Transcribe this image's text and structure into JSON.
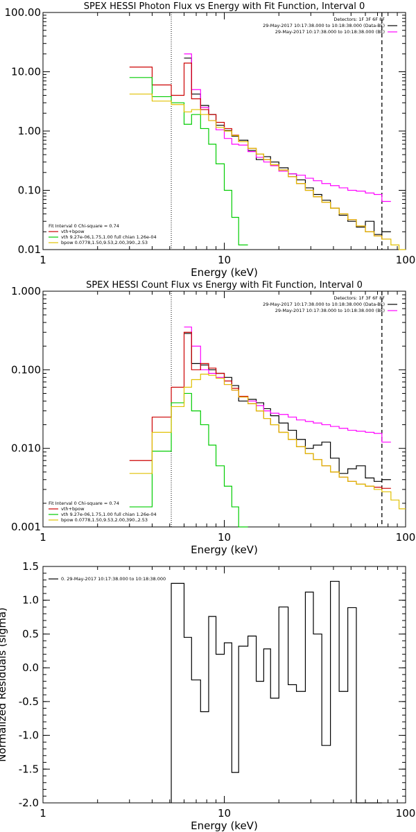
{
  "colors": {
    "data": "#000000",
    "bk": "#ff00ff",
    "total": "#cc0000",
    "vth": "#00cc00",
    "bpow": "#e0c000"
  },
  "chart_data": [
    {
      "type": "line",
      "scale": "log-log",
      "title": "SPEX HESSI Photon Flux vs Energy with Fit Function, Interval 0",
      "xlabel": "Energy (keV)",
      "ylabel": "",
      "xlim": [
        1,
        100
      ],
      "ylim": [
        0.01,
        100
      ],
      "xticks": [
        "1",
        "10",
        "100"
      ],
      "yticks": [
        "0.01",
        "0.10",
        "1.00",
        "10.00",
        "100.00"
      ],
      "header": [
        "Detectors: 1F 3F 6F 8F",
        "29-May-2017 10:17:38.000 to 10:18:38.000 (Data-Bk)",
        "29-May-2017 10:17:38.000 to 10:18:38.000 (Bk)"
      ],
      "legend": [
        "Fit Interval 0   Chi-square = 0.74",
        "vth+bpow",
        "vth 9.27e-06,1.75,1.00  full chian 1.26e-04",
        "bpow 0.0778,1.50,9.53,2.00,390.,2.53"
      ],
      "vlines": [
        5.1,
        74
      ],
      "edges": [
        3,
        4,
        5.1,
        6,
        6.6,
        7.4,
        8.2,
        9,
        10,
        11,
        12,
        13.5,
        15,
        16.5,
        18,
        20,
        22.5,
        25,
        28,
        31,
        34.5,
        38.5,
        43,
        48,
        53.5,
        60,
        67,
        74,
        83,
        92,
        100
      ],
      "series": [
        {
          "name": "Data-Bk",
          "key": "data",
          "values": [
            null,
            null,
            null,
            17,
            4.2,
            2.7,
            1.9,
            1.25,
            1.02,
            0.82,
            0.7,
            0.47,
            0.33,
            0.37,
            0.3,
            0.24,
            0.19,
            0.15,
            0.11,
            0.085,
            0.068,
            0.05,
            0.038,
            0.03,
            0.024,
            0.03,
            0.018,
            0.02,
            null,
            null
          ]
        },
        {
          "name": "Bk",
          "key": "bk",
          "values": [
            null,
            null,
            null,
            20,
            5,
            2.5,
            1.5,
            1.05,
            0.75,
            0.6,
            0.58,
            0.45,
            0.36,
            0.3,
            0.26,
            0.21,
            0.19,
            0.18,
            0.16,
            0.145,
            0.13,
            0.12,
            0.11,
            0.1,
            0.097,
            0.09,
            0.085,
            0.065,
            null,
            null
          ]
        },
        {
          "name": "vth+bpow",
          "key": "total",
          "values": [
            12,
            6,
            4,
            14,
            3.5,
            2.3,
            1.9,
            1.4,
            1.1,
            0.85,
            0.66,
            0.51,
            0.41,
            0.33,
            0.27,
            0.22,
            0.17,
            0.13,
            0.1,
            0.078,
            0.063,
            0.05,
            0.04,
            0.032,
            0.025,
            0.02,
            0.017,
            0.015,
            null,
            null
          ]
        },
        {
          "name": "vth",
          "key": "vth",
          "values": [
            8,
            3.8,
            3,
            1.3,
            1.9,
            1.1,
            0.6,
            0.28,
            0.1,
            0.035,
            0.012,
            null,
            null,
            null,
            null,
            null,
            null,
            null,
            null,
            null,
            null,
            null,
            null,
            null,
            null,
            null,
            null,
            null,
            null,
            null
          ]
        },
        {
          "name": "bpow",
          "key": "bpow",
          "values": [
            4.2,
            3.2,
            2.8,
            2.1,
            2.3,
            1.9,
            1.5,
            1.15,
            1,
            0.84,
            0.66,
            0.51,
            0.41,
            0.33,
            0.27,
            0.22,
            0.17,
            0.13,
            0.1,
            0.078,
            0.063,
            0.05,
            0.04,
            0.032,
            0.025,
            0.02,
            0.017,
            0.015,
            0.012,
            0.01
          ]
        }
      ]
    },
    {
      "type": "line",
      "scale": "log-log",
      "title": "SPEX HESSI Count Flux vs Energy with Fit Function, Interval 0",
      "xlabel": "Energy (keV)",
      "ylabel": "",
      "xlim": [
        1,
        100
      ],
      "ylim": [
        0.001,
        1
      ],
      "xticks": [
        "1",
        "10",
        "100"
      ],
      "yticks": [
        "0.001",
        "0.010",
        "0.100",
        "1.000"
      ],
      "header": [
        "Detectors: 1F 3F 6F 8F",
        "29-May-2017 10:17:38.000 to 10:18:38.000 (Data-Bk)",
        "29-May-2017 10:17:38.000 to 10:18:38.000 (Bk)"
      ],
      "legend": [
        "Fit Interval 0   Chi-square = 0.74",
        "vth+bpow",
        "vth 9.27e-06,1.75,1.00  full chian 1.26e-04",
        "bpow 0.0778,1.50,9.53,2.00,390.,2.53"
      ],
      "vlines": [
        5.1,
        74
      ],
      "edges": [
        3,
        4,
        5.1,
        6,
        6.6,
        7.4,
        8.2,
        9,
        10,
        11,
        12,
        13.5,
        15,
        16.5,
        18,
        20,
        22.5,
        25,
        28,
        31,
        34.5,
        38.5,
        43,
        48,
        53.5,
        60,
        67,
        74,
        83,
        92,
        100
      ],
      "series": [
        {
          "name": "Data-Bk",
          "key": "data",
          "values": [
            null,
            null,
            null,
            0.29,
            0.12,
            0.115,
            0.1,
            0.09,
            0.08,
            0.063,
            0.04,
            0.042,
            0.038,
            0.032,
            0.026,
            0.021,
            0.017,
            0.013,
            0.01,
            0.011,
            0.012,
            0.0075,
            0.0048,
            0.0055,
            0.006,
            0.0042,
            0.0038,
            0.004,
            null,
            null
          ]
        },
        {
          "name": "Bk",
          "key": "bk",
          "values": [
            null,
            null,
            null,
            0.35,
            0.2,
            0.1,
            0.09,
            0.08,
            0.065,
            0.055,
            0.045,
            0.04,
            0.035,
            0.03,
            0.028,
            0.027,
            0.025,
            0.023,
            0.022,
            0.021,
            0.02,
            0.019,
            0.018,
            0.017,
            0.0165,
            0.016,
            0.0155,
            0.012,
            null,
            null
          ]
        },
        {
          "name": "vth+bpow",
          "key": "total",
          "values": [
            0.007,
            0.025,
            0.06,
            0.3,
            0.1,
            0.12,
            0.105,
            0.09,
            0.072,
            0.058,
            0.046,
            0.037,
            0.03,
            0.024,
            0.02,
            0.016,
            0.013,
            0.0105,
            0.0086,
            0.0072,
            0.006,
            0.005,
            0.0043,
            0.0038,
            0.0035,
            0.0033,
            0.0032,
            0.0031,
            null,
            null
          ]
        },
        {
          "name": "vth",
          "key": "vth",
          "values": [
            0.0018,
            0.0092,
            0.038,
            0.05,
            0.03,
            0.02,
            0.011,
            0.006,
            0.0033,
            0.0018,
            0.001,
            null,
            null,
            null,
            null,
            null,
            null,
            null,
            null,
            null,
            null,
            null,
            null,
            null,
            null,
            null,
            null,
            null,
            null,
            null
          ]
        },
        {
          "name": "bpow",
          "key": "bpow",
          "values": [
            0.0048,
            0.016,
            0.034,
            0.06,
            0.075,
            0.088,
            0.085,
            0.078,
            0.065,
            0.055,
            0.045,
            0.037,
            0.03,
            0.024,
            0.02,
            0.016,
            0.013,
            0.0105,
            0.0086,
            0.0072,
            0.006,
            0.005,
            0.0043,
            0.0038,
            0.0035,
            0.0033,
            0.003,
            0.0028,
            0.0022,
            0.0017
          ]
        }
      ]
    },
    {
      "type": "line",
      "scale": "log-linear",
      "title": "",
      "xlabel": "Energy (keV)",
      "ylabel": "Normalized Residuals (sigma)",
      "xlim": [
        1,
        100
      ],
      "ylim": [
        -2,
        1.5
      ],
      "xticks": [
        "1",
        "10",
        "100"
      ],
      "yticks": [
        "-2.0",
        "-1.5",
        "-1.0",
        "-0.5",
        "0.0",
        "0.5",
        "1.0",
        "1.5"
      ],
      "legend": [
        "0. 29-May-2017 10:17:38.000 to 10:18:38.000"
      ],
      "edges": [
        5.1,
        6,
        6.6,
        7.4,
        8.2,
        9,
        10,
        11,
        12,
        13.5,
        15,
        16.5,
        18,
        20,
        22.5,
        25,
        28,
        31,
        34.5,
        38.5,
        43,
        48,
        53.5,
        60,
        67,
        74
      ],
      "series": [
        {
          "name": "Residuals",
          "key": "data",
          "values": [
            1.25,
            0.45,
            -0.18,
            -0.65,
            0.76,
            0.2,
            0.37,
            -1.55,
            0.32,
            0.47,
            -0.2,
            0.28,
            -0.45,
            0.9,
            -0.25,
            -0.35,
            1.12,
            0.5,
            -1.15,
            1.28,
            -0.35,
            0.89,
            -2.0,
            -2.0,
            -2.0
          ]
        }
      ]
    }
  ]
}
